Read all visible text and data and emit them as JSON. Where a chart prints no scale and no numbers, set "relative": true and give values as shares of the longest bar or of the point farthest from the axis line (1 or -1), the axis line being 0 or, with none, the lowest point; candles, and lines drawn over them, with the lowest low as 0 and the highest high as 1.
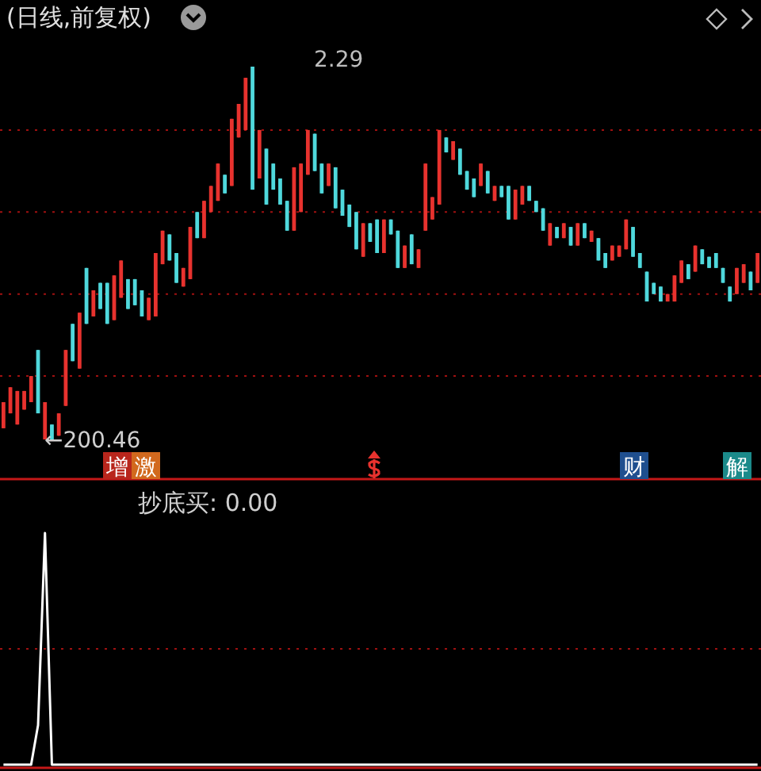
{
  "chart_data": [
    {
      "type": "candlestick",
      "title": "(日线,前复权)",
      "relative": true,
      "ref_lines": [
        {
          "axis": "y",
          "value": 0.83,
          "color": "#a01010",
          "line_style": "dotted"
        },
        {
          "axis": "y",
          "value": 0.61,
          "color": "#a01010",
          "line_style": "dotted"
        },
        {
          "axis": "y",
          "value": 0.39,
          "color": "#a01010",
          "line_style": "dotted"
        },
        {
          "axis": "y",
          "value": 0.17,
          "color": "#a01010",
          "line_style": "dotted"
        }
      ],
      "categories": [
        null,
        null,
        null,
        null,
        null,
        null,
        null,
        null,
        null,
        null,
        null,
        null,
        null,
        null,
        null,
        null,
        null,
        null,
        null,
        null,
        null,
        null,
        null,
        null,
        null,
        null,
        null,
        null,
        null,
        null,
        null,
        null,
        null,
        null,
        null,
        null,
        null,
        null,
        null,
        null,
        null,
        null,
        null,
        null,
        null,
        null,
        null,
        null,
        null,
        null,
        null,
        null,
        null,
        null,
        null,
        null,
        null,
        null,
        null,
        null,
        null,
        null,
        null,
        null,
        null,
        null,
        null,
        null,
        null,
        null,
        null,
        null,
        null,
        null,
        null,
        null,
        null,
        null,
        null,
        null,
        null,
        null,
        null,
        null,
        null,
        null,
        null,
        null,
        null,
        null,
        null,
        null,
        null,
        null,
        null,
        null,
        null,
        null,
        null,
        null,
        null,
        null,
        null,
        null,
        null,
        null,
        null,
        null,
        null,
        null
      ],
      "ohlc": [
        [
          0.03,
          0.1,
          0.03,
          0.1
        ],
        [
          0.07,
          0.14,
          0.07,
          0.14
        ],
        [
          0.04,
          0.13,
          0.04,
          0.13
        ],
        [
          0.08,
          0.13,
          0.08,
          0.13
        ],
        [
          0.1,
          0.17,
          0.1,
          0.17
        ],
        [
          0.24,
          0.24,
          0.07,
          0.07
        ],
        [
          0,
          0.1,
          0,
          0.1
        ],
        [
          0.04,
          0.04,
          0,
          0
        ],
        [
          0.01,
          0.07,
          0.01,
          0.07
        ],
        [
          0.09,
          0.24,
          0.09,
          0.24
        ],
        [
          0.31,
          0.31,
          0.21,
          0.21
        ],
        [
          0.19,
          0.34,
          0.19,
          0.34
        ],
        [
          0.46,
          0.46,
          0.31,
          0.31
        ],
        [
          0.33,
          0.4,
          0.33,
          0.4
        ],
        [
          0.42,
          0.42,
          0.35,
          0.35
        ],
        [
          0.42,
          0.42,
          0.31,
          0.31
        ],
        [
          0.32,
          0.44,
          0.32,
          0.44
        ],
        [
          0.38,
          0.48,
          0.38,
          0.48
        ],
        [
          0.43,
          0.43,
          0.35,
          0.35
        ],
        [
          0.43,
          0.43,
          0.36,
          0.36
        ],
        [
          0.4,
          0.4,
          0.33,
          0.33
        ],
        [
          0.32,
          0.38,
          0.32,
          0.38
        ],
        [
          0.33,
          0.5,
          0.33,
          0.5
        ],
        [
          0.47,
          0.56,
          0.47,
          0.56
        ],
        [
          0.55,
          0.55,
          0.48,
          0.48
        ],
        [
          0.5,
          0.5,
          0.42,
          0.42
        ],
        [
          0.41,
          0.46,
          0.41,
          0.46
        ],
        [
          0.43,
          0.57,
          0.43,
          0.57
        ],
        [
          0.61,
          0.61,
          0.54,
          0.54
        ],
        [
          0.54,
          0.64,
          0.54,
          0.64
        ],
        [
          0.61,
          0.68,
          0.61,
          0.68
        ],
        [
          0.64,
          0.74,
          0.64,
          0.74
        ],
        [
          0.71,
          0.71,
          0.66,
          0.66
        ],
        [
          0.68,
          0.86,
          0.68,
          0.86
        ],
        [
          0.81,
          0.9,
          0.81,
          0.9
        ],
        [
          0.83,
          0.97,
          0.83,
          0.97
        ],
        [
          1,
          1,
          0.67,
          0.67
        ],
        [
          0.7,
          0.83,
          0.7,
          0.83
        ],
        [
          0.78,
          0.78,
          0.63,
          0.63
        ],
        [
          0.74,
          0.74,
          0.67,
          0.67
        ],
        [
          0.7,
          0.7,
          0.63,
          0.63
        ],
        [
          0.64,
          0.64,
          0.56,
          0.56
        ],
        [
          0.56,
          0.73,
          0.56,
          0.73
        ],
        [
          0.61,
          0.74,
          0.61,
          0.74
        ],
        [
          0.71,
          0.83,
          0.71,
          0.83
        ],
        [
          0.82,
          0.82,
          0.72,
          0.72
        ],
        [
          0.74,
          0.74,
          0.66,
          0.66
        ],
        [
          0.68,
          0.74,
          0.68,
          0.74
        ],
        [
          0.73,
          0.73,
          0.62,
          0.62
        ],
        [
          0.67,
          0.67,
          0.6,
          0.6
        ],
        [
          0.63,
          0.63,
          0.57,
          0.57
        ],
        [
          0.61,
          0.61,
          0.51,
          0.51
        ],
        [
          0.49,
          0.58,
          0.49,
          0.58
        ],
        [
          0.58,
          0.58,
          0.53,
          0.53
        ],
        [
          0.59,
          0.59,
          0.5,
          0.5
        ],
        [
          0.5,
          0.59,
          0.5,
          0.59
        ],
        [
          0.59,
          0.59,
          0.55,
          0.55
        ],
        [
          0.56,
          0.56,
          0.46,
          0.46
        ],
        [
          0.46,
          0.52,
          0.46,
          0.52
        ],
        [
          0.55,
          0.55,
          0.47,
          0.47
        ],
        [
          0.46,
          0.51,
          0.46,
          0.51
        ],
        [
          0.56,
          0.74,
          0.56,
          0.74
        ],
        [
          0.59,
          0.65,
          0.59,
          0.65
        ],
        [
          0.63,
          0.83,
          0.63,
          0.83
        ],
        [
          0.81,
          0.81,
          0.77,
          0.77
        ],
        [
          0.75,
          0.8,
          0.75,
          0.8
        ],
        [
          0.78,
          0.78,
          0.71,
          0.71
        ],
        [
          0.72,
          0.72,
          0.67,
          0.67
        ],
        [
          0.7,
          0.7,
          0.65,
          0.65
        ],
        [
          0.68,
          0.74,
          0.68,
          0.74
        ],
        [
          0.72,
          0.72,
          0.66,
          0.66
        ],
        [
          0.64,
          0.68,
          0.64,
          0.68
        ],
        [
          0.68,
          0.68,
          0.65,
          0.65
        ],
        [
          0.68,
          0.68,
          0.59,
          0.59
        ],
        [
          0.59,
          0.67,
          0.59,
          0.67
        ],
        [
          0.63,
          0.68,
          0.63,
          0.68
        ],
        [
          0.68,
          0.68,
          0.64,
          0.64
        ],
        [
          0.64,
          0.64,
          0.61,
          0.61
        ],
        [
          0.62,
          0.62,
          0.56,
          0.56
        ],
        [
          0.52,
          0.58,
          0.52,
          0.58
        ],
        [
          0.57,
          0.57,
          0.54,
          0.54
        ],
        [
          0.54,
          0.58,
          0.54,
          0.58
        ],
        [
          0.57,
          0.57,
          0.52,
          0.52
        ],
        [
          0.52,
          0.58,
          0.52,
          0.58
        ],
        [
          0.58,
          0.58,
          0.54,
          0.54
        ],
        [
          0.53,
          0.56,
          0.53,
          0.56
        ],
        [
          0.54,
          0.54,
          0.48,
          0.48
        ],
        [
          0.5,
          0.5,
          0.46,
          0.46
        ],
        [
          0.48,
          0.52,
          0.48,
          0.52
        ],
        [
          0.49,
          0.52,
          0.49,
          0.52
        ],
        [
          0.51,
          0.59,
          0.51,
          0.59
        ],
        [
          0.57,
          0.57,
          0.49,
          0.49
        ],
        [
          0.5,
          0.5,
          0.46,
          0.46
        ],
        [
          0.45,
          0.45,
          0.37,
          0.37
        ],
        [
          0.42,
          0.42,
          0.39,
          0.39
        ],
        [
          0.41,
          0.41,
          0.37,
          0.37
        ],
        [
          0.37,
          0.39,
          0.37,
          0.39
        ],
        [
          0.37,
          0.44,
          0.37,
          0.44
        ],
        [
          0.42,
          0.48,
          0.42,
          0.48
        ],
        [
          0.47,
          0.47,
          0.43,
          0.43
        ],
        [
          0.45,
          0.52,
          0.45,
          0.52
        ],
        [
          0.51,
          0.51,
          0.47,
          0.47
        ],
        [
          0.49,
          0.49,
          0.46,
          0.46
        ],
        [
          0.5,
          0.5,
          0.46,
          0.46
        ],
        [
          0.46,
          0.46,
          0.42,
          0.42
        ],
        [
          0.41,
          0.41,
          0.37,
          0.37
        ],
        [
          0.39,
          0.46,
          0.39,
          0.46
        ],
        [
          0.42,
          0.47,
          0.42,
          0.47
        ],
        [
          0.45,
          0.45,
          0.4,
          0.4
        ],
        [
          0.42,
          0.5,
          0.42,
          0.5
        ]
      ],
      "annotations": [
        "←200.46",
        "2.29",
        "增",
        "激",
        "财",
        "解"
      ]
    },
    {
      "type": "line",
      "title": "抄底买: 0.00",
      "relative": true,
      "ref_lines": [
        {
          "axis": "y",
          "value": 0.5,
          "color": "#a01010",
          "line_style": "dotted"
        }
      ],
      "categories": [
        null,
        null,
        null,
        null,
        null,
        null,
        null,
        null,
        null,
        null,
        null,
        null,
        null,
        null,
        null,
        null,
        null,
        null,
        null,
        null,
        null,
        null,
        null,
        null,
        null,
        null,
        null,
        null,
        null,
        null,
        null,
        null,
        null,
        null,
        null,
        null,
        null,
        null,
        null,
        null,
        null,
        null,
        null,
        null,
        null,
        null,
        null,
        null,
        null,
        null,
        null,
        null,
        null,
        null,
        null,
        null,
        null,
        null,
        null,
        null,
        null,
        null,
        null,
        null,
        null,
        null,
        null,
        null,
        null,
        null,
        null,
        null,
        null,
        null,
        null,
        null,
        null,
        null,
        null,
        null,
        null,
        null,
        null,
        null,
        null,
        null,
        null,
        null,
        null,
        null,
        null,
        null,
        null,
        null,
        null,
        null,
        null,
        null,
        null,
        null,
        null,
        null,
        null,
        null,
        null,
        null,
        null,
        null,
        null,
        null
      ],
      "series": [
        {
          "color": "#ffffff",
          "values": [
            0,
            0,
            0,
            0,
            0,
            0.17,
            1,
            0,
            0,
            0,
            0,
            0,
            0,
            0,
            0,
            0,
            0,
            0,
            0,
            0,
            0,
            0,
            0,
            0,
            0,
            0,
            0,
            0,
            0,
            0,
            0,
            0,
            0,
            0,
            0,
            0,
            0,
            0,
            0,
            0,
            0,
            0,
            0,
            0,
            0,
            0,
            0,
            0,
            0,
            0,
            0,
            0,
            0,
            0,
            0,
            0,
            0,
            0,
            0,
            0,
            0,
            0,
            0,
            0,
            0,
            0,
            0,
            0,
            0,
            0,
            0,
            0,
            0,
            0,
            0,
            0,
            0,
            0,
            0,
            0,
            0,
            0,
            0,
            0,
            0,
            0,
            0,
            0,
            0,
            0,
            0,
            0,
            0,
            0,
            0,
            0,
            0,
            0,
            0,
            0,
            0,
            0,
            0,
            0,
            0,
            0,
            0,
            0,
            0,
            0
          ]
        }
      ]
    }
  ]
}
